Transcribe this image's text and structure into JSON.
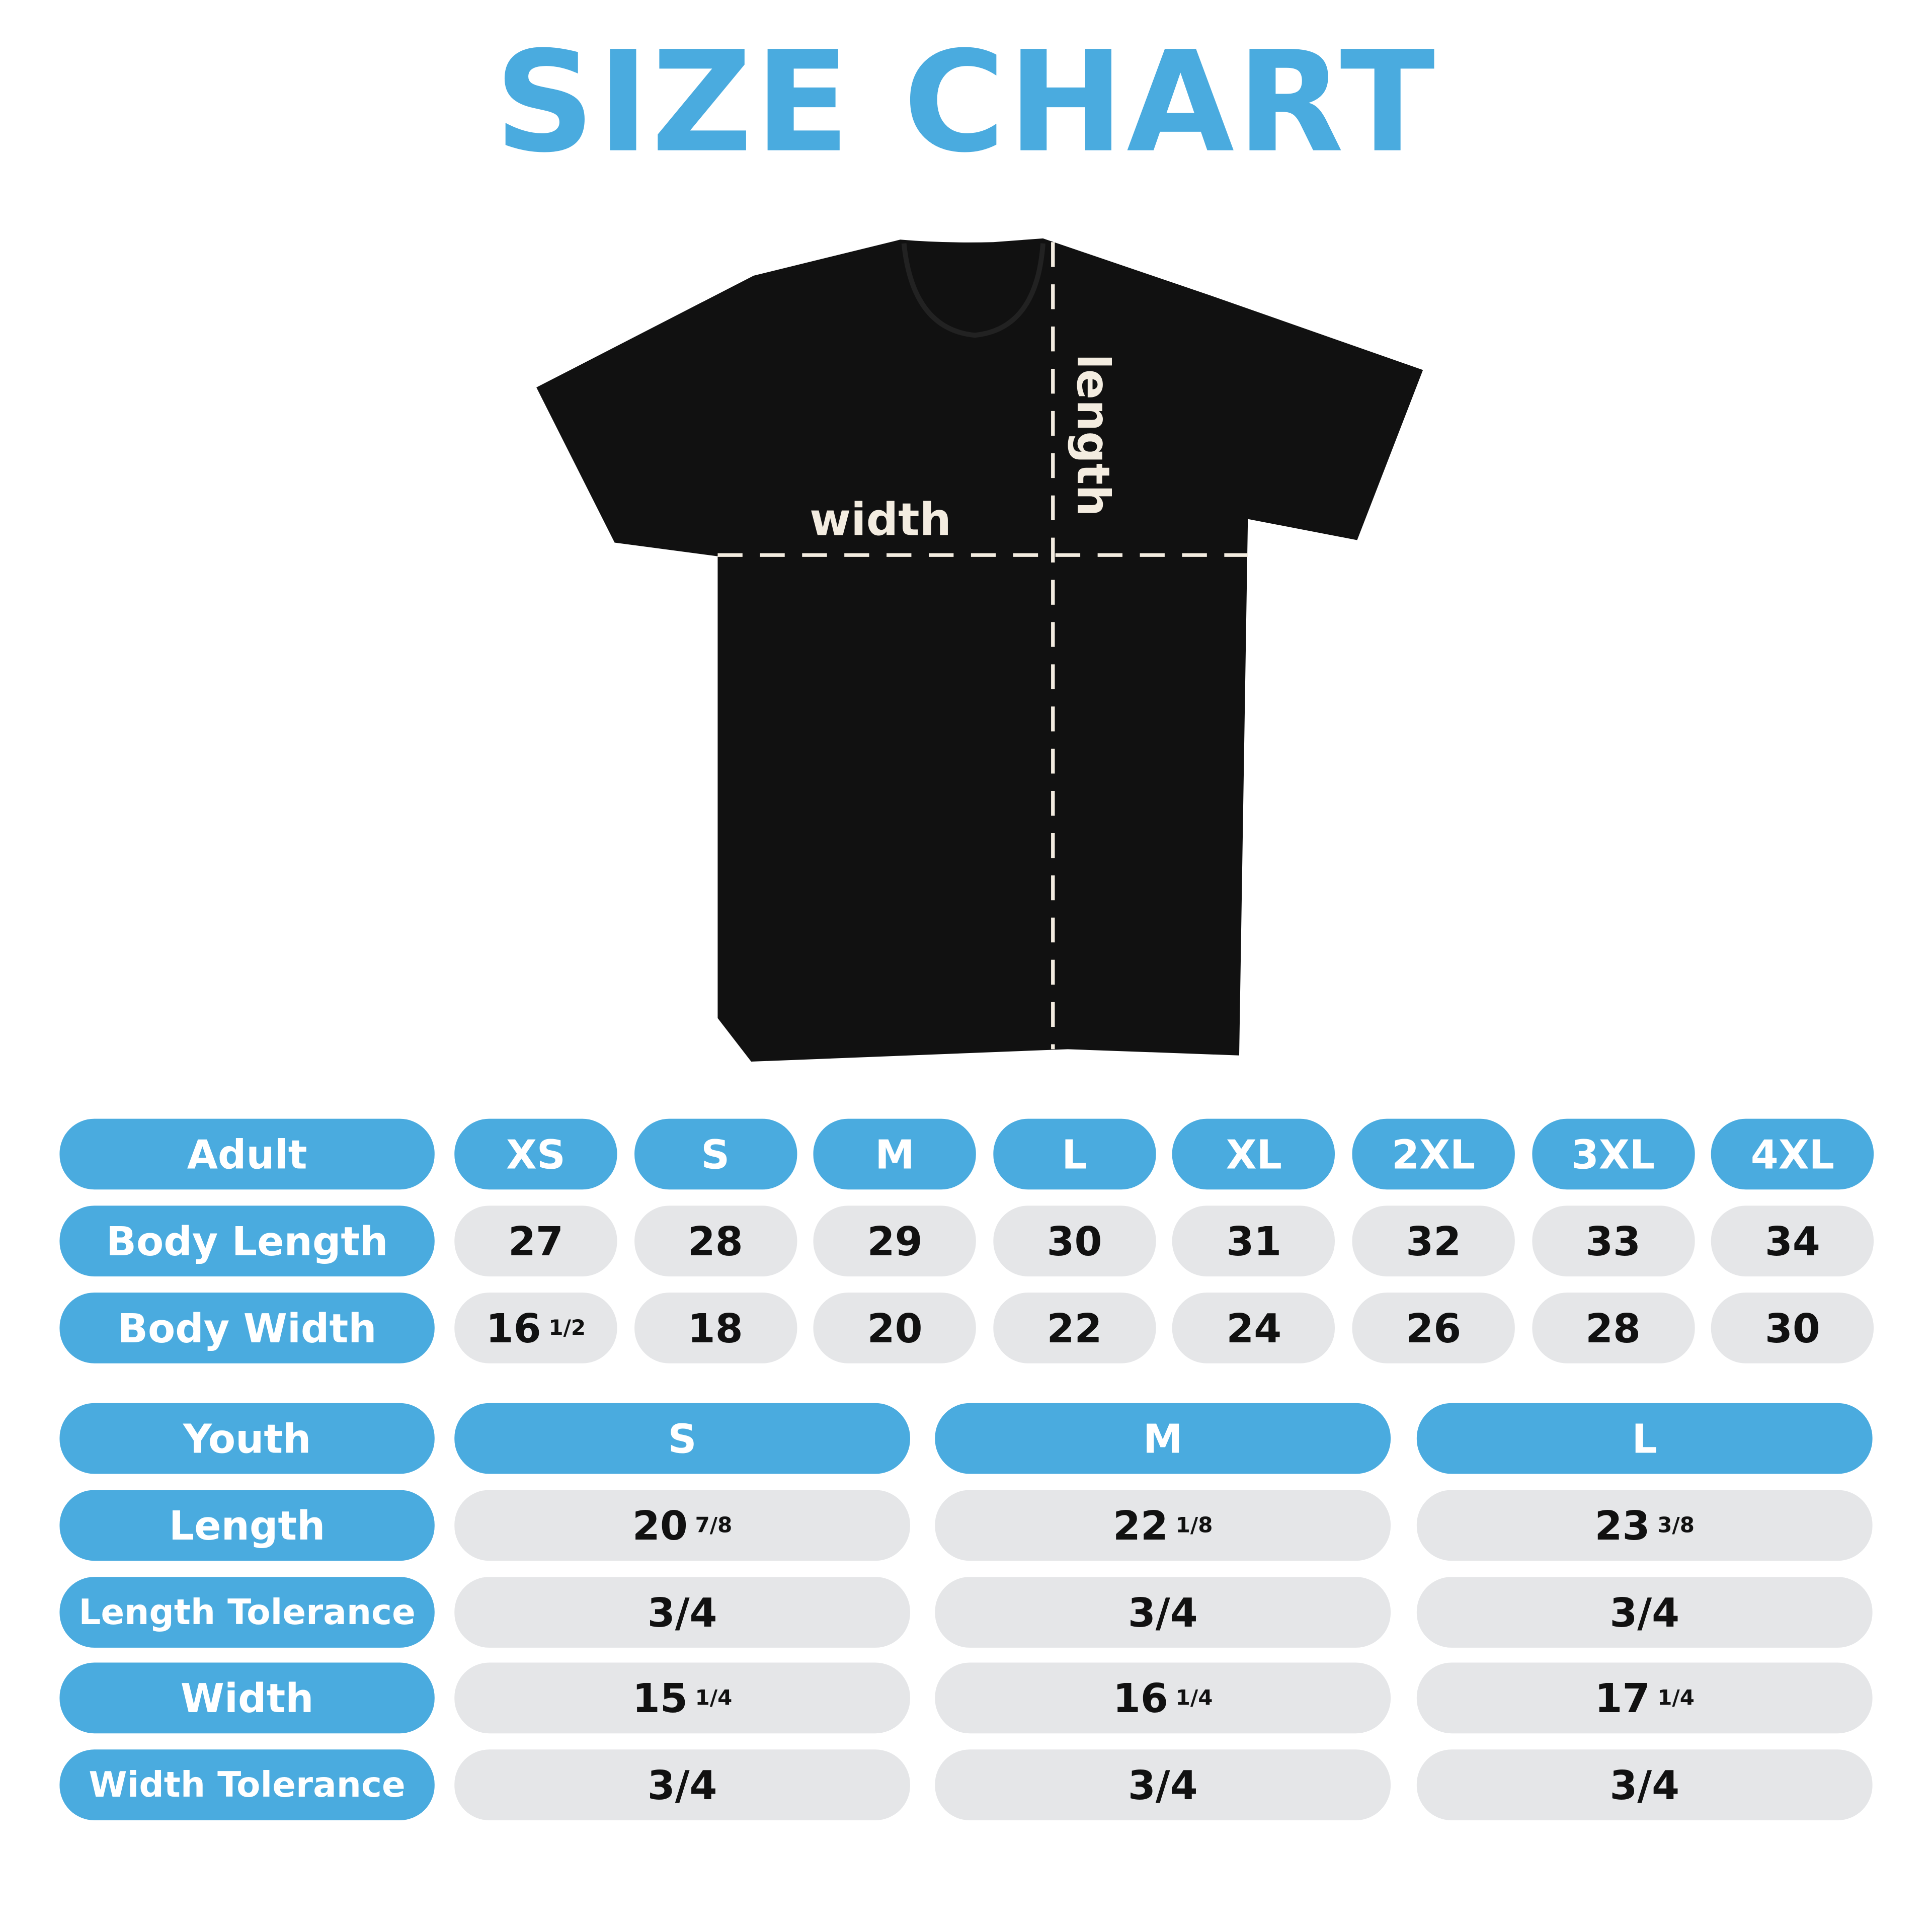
{
  "title": "SIZE CHART",
  "colors": {
    "accent": "#4aabdf",
    "cell": "#e5e6e8",
    "shirt": "#111111"
  },
  "diagram": {
    "width_label": "width",
    "length_label": "length"
  },
  "adult": {
    "header": "Adult",
    "sizes": [
      "XS",
      "S",
      "M",
      "L",
      "XL",
      "2XL",
      "3XL",
      "4XL"
    ],
    "rows": [
      {
        "label": "Body Length",
        "values": [
          {
            "v": "27"
          },
          {
            "v": "28"
          },
          {
            "v": "29"
          },
          {
            "v": "30"
          },
          {
            "v": "31"
          },
          {
            "v": "32"
          },
          {
            "v": "33"
          },
          {
            "v": "34"
          }
        ]
      },
      {
        "label": "Body Width",
        "values": [
          {
            "v": "16",
            "f": "1/2"
          },
          {
            "v": "18"
          },
          {
            "v": "20"
          },
          {
            "v": "22"
          },
          {
            "v": "24"
          },
          {
            "v": "26"
          },
          {
            "v": "28"
          },
          {
            "v": "30"
          }
        ]
      }
    ]
  },
  "youth": {
    "header": "Youth",
    "sizes": [
      "S",
      "M",
      "L"
    ],
    "rows": [
      {
        "label": "Length",
        "values": [
          {
            "v": "20",
            "f": "7/8"
          },
          {
            "v": "22",
            "f": "1/8"
          },
          {
            "v": "23",
            "f": "3/8"
          }
        ]
      },
      {
        "label": "Length Tolerance",
        "values": [
          {
            "v": "3/4"
          },
          {
            "v": "3/4"
          },
          {
            "v": "3/4"
          }
        ]
      },
      {
        "label": "Width",
        "values": [
          {
            "v": "15",
            "f": "1/4"
          },
          {
            "v": "16",
            "f": "1/4"
          },
          {
            "v": "17",
            "f": "1/4"
          }
        ]
      },
      {
        "label": "Width Tolerance",
        "values": [
          {
            "v": "3/4"
          },
          {
            "v": "3/4"
          },
          {
            "v": "3/4"
          }
        ]
      }
    ]
  }
}
